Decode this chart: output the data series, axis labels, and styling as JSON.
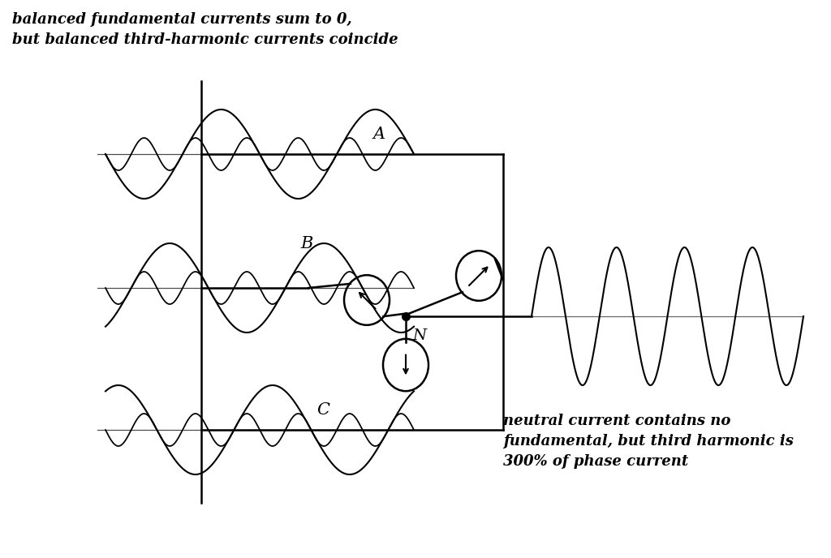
{
  "title_top": "balanced fundamental currents sum to 0,\nbut balanced third-harmonic currents coincide",
  "label_A": "A",
  "label_B": "B",
  "label_C": "C",
  "label_N": "N",
  "annotation_bottom": "neutral current contains no\nfundamental, but third harmonic is\n300% of phase current",
  "bg_color": "#ffffff",
  "fig_width": 10.24,
  "fig_height": 6.88,
  "dpi": 100
}
